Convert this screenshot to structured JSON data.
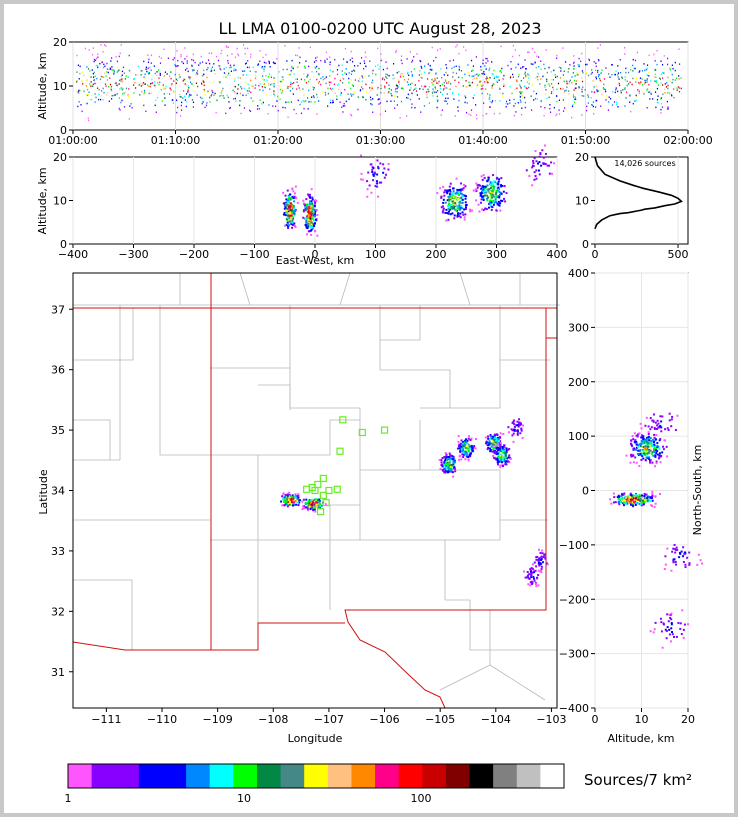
{
  "title": "LL LMA 0100-0200 UTC August 28, 2023",
  "chart_data": [
    {
      "panel": "time-altitude",
      "type": "scatter",
      "ylabel": "Altitude, km",
      "ylim": [
        0,
        20
      ],
      "yticks": [
        "0",
        "10",
        "20"
      ],
      "xticks": [
        "01:00:00",
        "01:10:00",
        "01:20:00",
        "01:30:00",
        "01:40:00",
        "01:50:00",
        "02:00:00"
      ],
      "xlim": [
        "01:00:00",
        "02:00:00"
      ],
      "activity": "continuous VHF sources throughout the hour, densest between 8 and 14 km"
    },
    {
      "panel": "eastwest-altitude",
      "type": "heatmap",
      "xlabel": "East-West, km",
      "ylabel": "Altitude, km",
      "xlim": [
        -400,
        400
      ],
      "ylim": [
        0,
        20
      ],
      "xticks": [
        "−400",
        "−300",
        "−200",
        "−100",
        "0",
        "100",
        "200",
        "300",
        "400"
      ],
      "yticks": [
        "0",
        "10",
        "20"
      ],
      "clusters": [
        {
          "x_km": -43,
          "z_km": 8,
          "intensity": "high"
        },
        {
          "x_km": -10,
          "z_km": 7,
          "intensity": "high"
        },
        {
          "x_km": 230,
          "z_km": 10,
          "intensity": "medium"
        },
        {
          "x_km": 290,
          "z_km": 12,
          "intensity": "medium"
        },
        {
          "x_km": 370,
          "z_km": 18,
          "intensity": "low"
        },
        {
          "x_km": 100,
          "z_km": 16,
          "intensity": "low"
        }
      ]
    },
    {
      "panel": "altitude-histogram",
      "type": "line",
      "annotation": "14,026 sources",
      "xlim": [
        0,
        560
      ],
      "ylim": [
        0,
        20
      ],
      "xticks": [
        "0",
        "500"
      ],
      "yticks": [
        "0",
        "10",
        "20"
      ],
      "x": [
        0,
        10,
        40,
        90,
        150,
        200,
        240,
        280,
        300,
        360,
        420,
        480,
        520,
        500,
        460,
        380,
        290,
        230,
        150,
        60,
        15,
        0
      ],
      "y": [
        3.5,
        4.5,
        5.5,
        6.5,
        7.0,
        7.2,
        7.5,
        7.8,
        8.0,
        8.3,
        8.8,
        9.2,
        9.8,
        10.5,
        11.2,
        12.0,
        12.8,
        13.5,
        14.5,
        16.0,
        18.0,
        20.0
      ]
    },
    {
      "panel": "plan-view",
      "type": "heatmap",
      "xlabel": "Longitude",
      "ylabel": "Latitude",
      "xlim": [
        -111.6,
        -102.9
      ],
      "ylim": [
        30.4,
        37.6
      ],
      "xticks": [
        "−111",
        "−110",
        "−109",
        "−108",
        "−107",
        "−106",
        "−105",
        "−104",
        "−103"
      ],
      "yticks": [
        "31",
        "32",
        "33",
        "34",
        "35",
        "36",
        "37"
      ],
      "stations": [
        {
          "lon": -107.3,
          "lat": 34.05
        },
        {
          "lon": -107.2,
          "lat": 34.1
        },
        {
          "lon": -107.1,
          "lat": 34.2
        },
        {
          "lon": -107.0,
          "lat": 34.0
        },
        {
          "lon": -106.85,
          "lat": 34.02
        },
        {
          "lon": -107.1,
          "lat": 33.92
        },
        {
          "lon": -107.05,
          "lat": 33.8
        },
        {
          "lon": -107.15,
          "lat": 33.65
        },
        {
          "lon": -107.4,
          "lat": 34.02
        },
        {
          "lon": -107.25,
          "lat": 34.0
        },
        {
          "lon": -106.8,
          "lat": 34.65
        },
        {
          "lon": -106.4,
          "lat": 34.96
        },
        {
          "lon": -106.0,
          "lat": 35.0
        },
        {
          "lon": -106.75,
          "lat": 35.17
        }
      ],
      "clusters": [
        {
          "lon": -107.7,
          "lat": 33.85,
          "intensity": "high"
        },
        {
          "lon": -107.3,
          "lat": 33.8,
          "intensity": "high"
        },
        {
          "lon": -104.55,
          "lat": 34.72,
          "intensity": "medium"
        },
        {
          "lon": -104.85,
          "lat": 34.45,
          "intensity": "medium"
        },
        {
          "lon": -104.05,
          "lat": 34.8,
          "intensity": "medium"
        },
        {
          "lon": -103.9,
          "lat": 34.6,
          "intensity": "medium"
        },
        {
          "lon": -103.65,
          "lat": 35.05,
          "intensity": "low"
        },
        {
          "lon": -103.2,
          "lat": 32.85,
          "intensity": "low"
        },
        {
          "lon": -103.35,
          "lat": 32.6,
          "intensity": "low"
        }
      ]
    },
    {
      "panel": "altitude-northsouth",
      "type": "heatmap",
      "xlabel": "Altitude, km",
      "ylabel": "North-South, km",
      "xlim": [
        0,
        20
      ],
      "ylim": [
        -400,
        400
      ],
      "xticks": [
        "0",
        "10",
        "20"
      ],
      "yticks": [
        "−400",
        "−300",
        "−200",
        "−100",
        "0",
        "100",
        "200",
        "300",
        "400"
      ],
      "clusters": [
        {
          "z_km": 8,
          "y_km": -15,
          "intensity": "high"
        },
        {
          "z_km": 11,
          "y_km": 80,
          "intensity": "medium"
        },
        {
          "z_km": 14,
          "y_km": 125,
          "intensity": "low"
        },
        {
          "z_km": 18,
          "y_km": -120,
          "intensity": "low"
        },
        {
          "z_km": 16,
          "y_km": -250,
          "intensity": "low"
        }
      ]
    }
  ],
  "colorbar": {
    "label": "Sources/7 km²",
    "ticks": [
      "1",
      "10",
      "100"
    ],
    "colors": [
      "#ff55ff",
      "#8800ff",
      "#8800ff",
      "#0000ff",
      "#0000ff",
      "#0088ff",
      "#00ffff",
      "#00ff00",
      "#008844",
      "#448888",
      "#ffff00",
      "#ffc080",
      "#ff8800",
      "#ff0088",
      "#ff0000",
      "#c80000",
      "#800000",
      "#000000",
      "#808080",
      "#c0c0c0",
      "#ffffff"
    ]
  }
}
